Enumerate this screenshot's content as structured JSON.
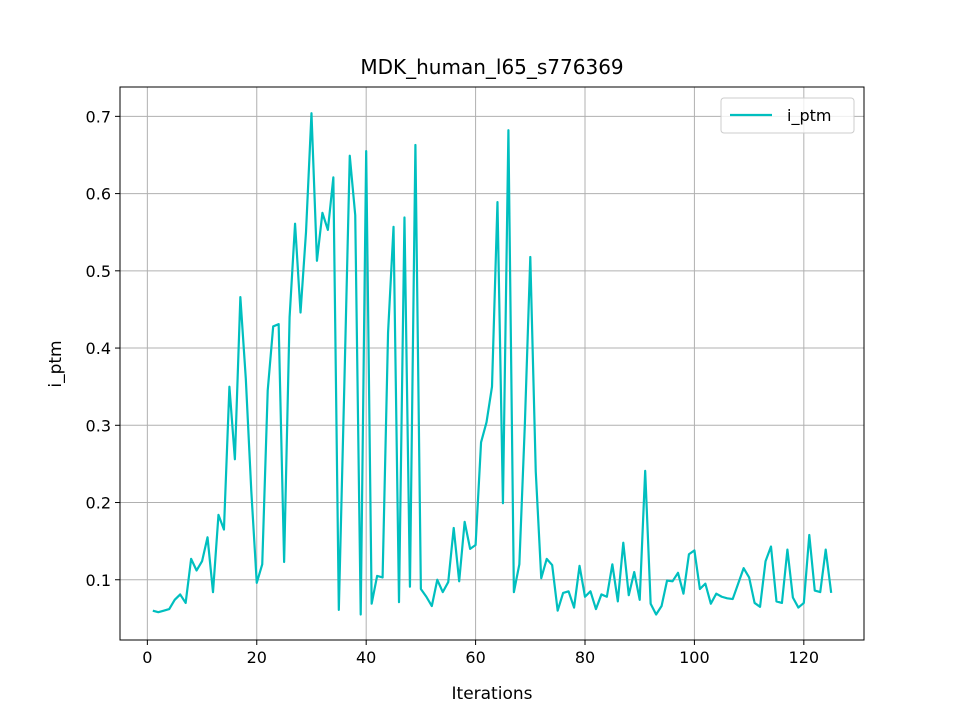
{
  "chart_data": {
    "type": "line",
    "title": "MDK_human_l65_s776369",
    "xlabel": "Iterations",
    "ylabel": "i_ptm",
    "xlim": [
      -5,
      131
    ],
    "ylim": [
      0.022,
      0.738
    ],
    "xticks": [
      0,
      20,
      40,
      60,
      80,
      100,
      120
    ],
    "yticks": [
      0.1,
      0.2,
      0.3,
      0.4,
      0.5,
      0.6,
      0.7
    ],
    "grid": true,
    "legend_position": "top-right",
    "series": [
      {
        "name": "i_ptm",
        "color": "#00bfbf",
        "x": [
          1,
          2,
          3,
          4,
          5,
          6,
          7,
          8,
          9,
          10,
          11,
          12,
          13,
          14,
          15,
          16,
          17,
          18,
          19,
          20,
          21,
          22,
          23,
          24,
          25,
          26,
          27,
          28,
          29,
          30,
          31,
          32,
          33,
          34,
          35,
          36,
          37,
          38,
          39,
          40,
          41,
          42,
          43,
          44,
          45,
          46,
          47,
          48,
          49,
          50,
          51,
          52,
          53,
          54,
          55,
          56,
          57,
          58,
          59,
          60,
          61,
          62,
          63,
          64,
          65,
          66,
          67,
          68,
          69,
          70,
          71,
          72,
          73,
          74,
          75,
          76,
          77,
          78,
          79,
          80,
          81,
          82,
          83,
          84,
          85,
          86,
          87,
          88,
          89,
          90,
          91,
          92,
          93,
          94,
          95,
          96,
          97,
          98,
          99,
          100,
          101,
          102,
          103,
          104,
          105,
          106,
          107,
          108,
          109,
          110,
          111,
          112,
          113,
          114,
          115,
          116,
          117,
          118,
          119,
          120,
          121,
          122,
          123,
          124,
          125
        ],
        "y": [
          0.06,
          0.058,
          0.06,
          0.062,
          0.074,
          0.081,
          0.07,
          0.127,
          0.112,
          0.124,
          0.155,
          0.084,
          0.184,
          0.165,
          0.35,
          0.256,
          0.466,
          0.36,
          0.215,
          0.096,
          0.12,
          0.345,
          0.428,
          0.431,
          0.123,
          0.44,
          0.561,
          0.446,
          0.55,
          0.704,
          0.513,
          0.575,
          0.553,
          0.621,
          0.061,
          0.35,
          0.649,
          0.572,
          0.055,
          0.655,
          0.069,
          0.105,
          0.103,
          0.42,
          0.557,
          0.071,
          0.569,
          0.091,
          0.663,
          0.088,
          0.078,
          0.066,
          0.1,
          0.084,
          0.097,
          0.167,
          0.098,
          0.175,
          0.14,
          0.145,
          0.278,
          0.304,
          0.35,
          0.589,
          0.199,
          0.682,
          0.084,
          0.12,
          0.3,
          0.518,
          0.24,
          0.102,
          0.127,
          0.119,
          0.06,
          0.083,
          0.085,
          0.064,
          0.118,
          0.078,
          0.085,
          0.062,
          0.081,
          0.078,
          0.12,
          0.072,
          0.148,
          0.08,
          0.11,
          0.074,
          0.241,
          0.069,
          0.055,
          0.066,
          0.099,
          0.098,
          0.109,
          0.082,
          0.133,
          0.138,
          0.088,
          0.095,
          0.069,
          0.082,
          0.078,
          0.076,
          0.075,
          0.095,
          0.115,
          0.103,
          0.07,
          0.065,
          0.124,
          0.143,
          0.072,
          0.07,
          0.139,
          0.077,
          0.064,
          0.07,
          0.158,
          0.086,
          0.084,
          0.139,
          0.083
        ]
      }
    ]
  }
}
